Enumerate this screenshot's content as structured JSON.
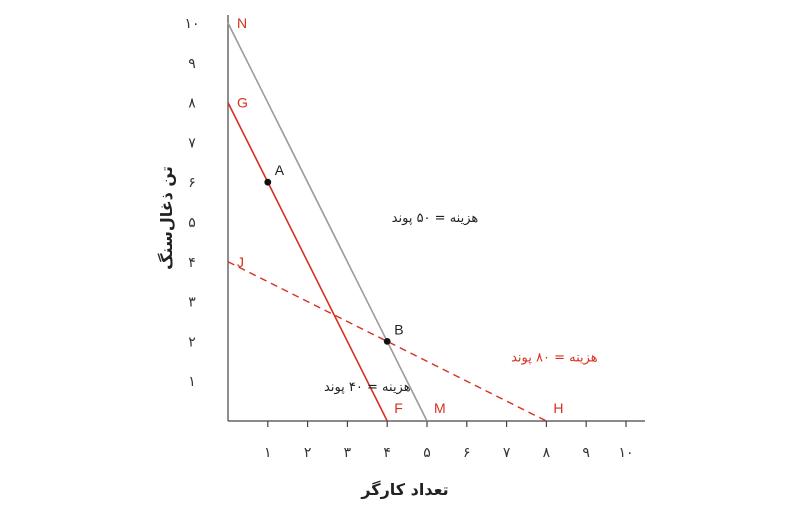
{
  "chart_data": {
    "type": "line",
    "xlabel": "تعداد کارگر",
    "ylabel": "تن ذغال‌سنگ",
    "xlim": [
      0,
      10
    ],
    "ylim": [
      0,
      10
    ],
    "x_ticks": [
      "۱",
      "۲",
      "۳",
      "۴",
      "۵",
      "۶",
      "۷",
      "۸",
      "۹",
      "۱۰"
    ],
    "y_ticks": [
      "۱",
      "۲",
      "۳",
      "۴",
      "۵",
      "۶",
      "۷",
      "۸",
      "۹",
      "۱۰"
    ],
    "colors": {
      "red": "#d7301f",
      "gray": "#9a9a9a",
      "text": "#222222"
    },
    "series": [
      {
        "id": "gray-line",
        "color": "#9a9a9a",
        "style": "solid",
        "points": [
          [
            0,
            10
          ],
          [
            5,
            0
          ]
        ]
      },
      {
        "id": "red-line",
        "color": "#d7301f",
        "style": "solid",
        "points": [
          [
            0,
            8
          ],
          [
            4,
            0
          ]
        ]
      },
      {
        "id": "dashed-line",
        "color": "#d7301f",
        "style": "dashed",
        "points": [
          [
            0,
            4
          ],
          [
            8,
            0
          ]
        ]
      }
    ],
    "points": [
      {
        "label": "A",
        "x": 1,
        "y": 6
      },
      {
        "label": "B",
        "x": 4,
        "y": 2
      }
    ],
    "endpoint_labels": [
      {
        "label": "N",
        "x": 0,
        "y": 10,
        "color": "#d7301f"
      },
      {
        "label": "G",
        "x": 0,
        "y": 8,
        "color": "#d7301f"
      },
      {
        "label": "J",
        "x": 0,
        "y": 4,
        "color": "#d7301f"
      },
      {
        "label": "F",
        "x": 4,
        "y": 0,
        "color": "#d7301f"
      },
      {
        "label": "M",
        "x": 5,
        "y": 0,
        "color": "#d7301f"
      },
      {
        "label": "H",
        "x": 8,
        "y": 0,
        "color": "#d7301f"
      }
    ],
    "annotations": [
      {
        "text": "هزینه = ۵۰ پوند",
        "x": 5.2,
        "y": 5.0,
        "color": "#222222"
      },
      {
        "text": "هزینه = ۸۰ پوند",
        "x": 8.2,
        "y": 1.5,
        "color": "#d7301f"
      },
      {
        "text": "هزینه = ۴۰ پوند",
        "x": 3.5,
        "y": 0.75,
        "color": "#222222"
      }
    ]
  }
}
